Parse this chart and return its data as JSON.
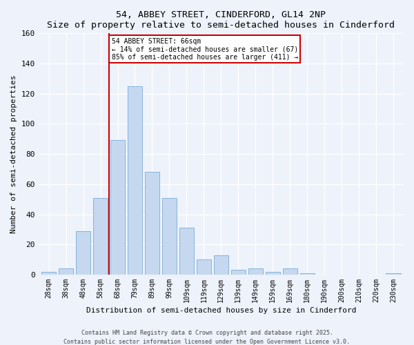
{
  "title1": "54, ABBEY STREET, CINDERFORD, GL14 2NP",
  "title2": "Size of property relative to semi-detached houses in Cinderford",
  "xlabel": "Distribution of semi-detached houses by size in Cinderford",
  "ylabel": "Number of semi-detached properties",
  "categories": [
    "28sqm",
    "38sqm",
    "48sqm",
    "58sqm",
    "68sqm",
    "79sqm",
    "89sqm",
    "99sqm",
    "109sqm",
    "119sqm",
    "129sqm",
    "139sqm",
    "149sqm",
    "159sqm",
    "169sqm",
    "180sqm",
    "190sqm",
    "200sqm",
    "210sqm",
    "220sqm",
    "230sqm"
  ],
  "values": [
    2,
    4,
    29,
    51,
    89,
    125,
    68,
    51,
    31,
    10,
    13,
    3,
    4,
    2,
    4,
    1,
    0,
    0,
    0,
    0,
    1
  ],
  "bar_color": "#c5d8f0",
  "bar_edge_color": "#7aadd4",
  "vline_x_index": 4,
  "vline_color": "#cc0000",
  "annotation_title": "54 ABBEY STREET: 66sqm",
  "annotation_line1": "← 14% of semi-detached houses are smaller (67)",
  "annotation_line2": "85% of semi-detached houses are larger (411) →",
  "annotation_box_edge": "#cc0000",
  "ylim": [
    0,
    160
  ],
  "yticks": [
    0,
    20,
    40,
    60,
    80,
    100,
    120,
    140,
    160
  ],
  "footer1": "Contains HM Land Registry data © Crown copyright and database right 2025.",
  "footer2": "Contains public sector information licensed under the Open Government Licence v3.0.",
  "bg_color": "#edf2fb",
  "grid_color": "#ffffff",
  "title_fontsize": 9.5,
  "axis_label_fontsize": 8,
  "tick_fontsize": 7,
  "footer_fontsize": 6,
  "annotation_fontsize": 7
}
